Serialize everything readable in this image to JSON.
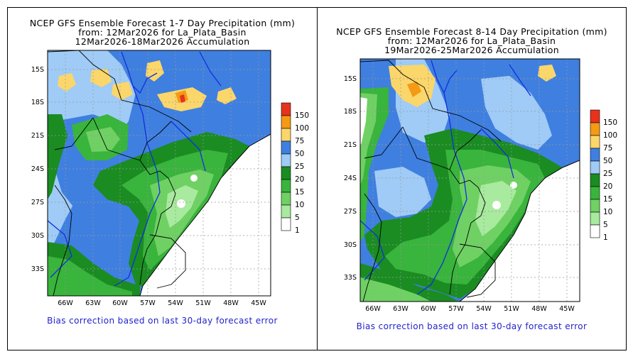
{
  "colors": {
    "c150": "#e8321c",
    "c100": "#f49a14",
    "c75": "#fbd66a",
    "c50": "#3f7fe0",
    "c25": "#9fcbf6",
    "c20": "#1a8c22",
    "c15": "#39b43c",
    "c10": "#6fd163",
    "c5": "#a8ea9e",
    "c1": "#ffffff",
    "land": "#ffffff",
    "border": "#000000",
    "river": "#1030e0",
    "note": "#2222cc"
  },
  "legend_values": [
    "150",
    "100",
    "75",
    "50",
    "25",
    "20",
    "15",
    "10",
    "5",
    "1"
  ],
  "left": {
    "title": "NCEP GFS Ensemble Forecast 1-7 Day Precipitation (mm)",
    "from": "from: 12Mar2026   for La_Plata_Basin",
    "accum": "12Mar2026-18Mar2026 Accumulation",
    "note": "Bias correction based on last 30-day forecast error",
    "lat_labels": [
      "15S",
      "18S",
      "21S",
      "24S",
      "27S",
      "30S",
      "33S"
    ],
    "lon_labels": [
      "66W",
      "63W",
      "60W",
      "57W",
      "54W",
      "51W",
      "48W",
      "45W"
    ]
  },
  "right": {
    "title": "NCEP GFS Ensemble Forecast 8-14 Day Precipitation (mm)",
    "from": "from: 12Mar2026   for La_Plata_Basin",
    "accum": "19Mar2026-25Mar2026 Accumulation",
    "note": "Bias correction based on last 30-day forecast error",
    "lat_labels": [
      "15S",
      "18S",
      "21S",
      "24S",
      "27S",
      "30S",
      "33S"
    ],
    "lon_labels": [
      "66W",
      "63W",
      "60W",
      "57W",
      "54W",
      "51W",
      "48W",
      "45W"
    ]
  }
}
